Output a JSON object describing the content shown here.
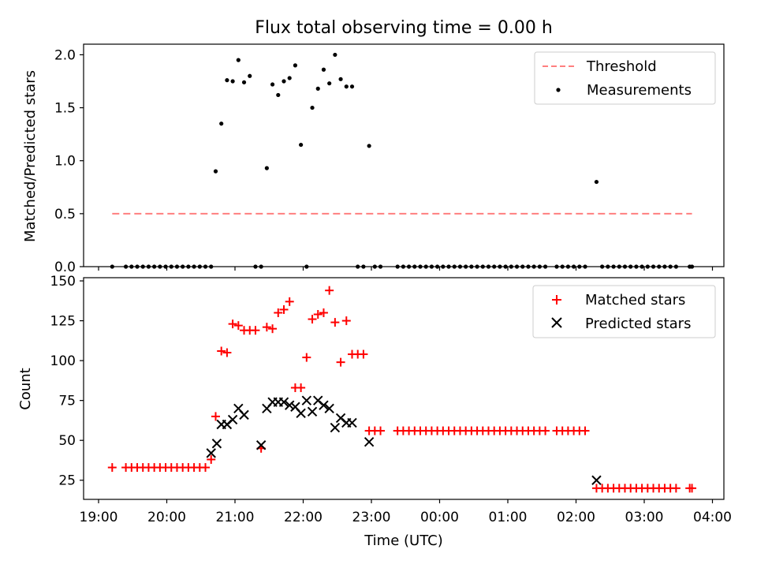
{
  "chart_data": [
    {
      "type": "scatter",
      "title": "Flux total observing time = 0.00 h",
      "ylabel": "Matched/Predicted stars",
      "xlabel": "",
      "ylim": [
        0,
        2.1
      ],
      "yticks": [
        "0.0",
        "0.5",
        "1.0",
        "1.5",
        "2.0"
      ],
      "yticks_values": [
        0,
        0.5,
        1.0,
        1.5,
        2.0
      ],
      "legend_position": "top-right",
      "series": [
        {
          "name": "Threshold",
          "kind": "line",
          "style": "dashed",
          "color": "#ff7f7f",
          "x": [
            "19:12",
            "23:59",
            "03:42"
          ],
          "y": [
            0.5,
            0.5,
            0.5
          ]
        },
        {
          "name": "Measurements",
          "kind": "dots",
          "color": "#000000",
          "x": [
            "19:12",
            "19:24",
            "19:29",
            "19:34",
            "19:39",
            "19:44",
            "19:49",
            "19:54",
            "19:59",
            "20:04",
            "20:09",
            "20:14",
            "20:19",
            "20:24",
            "20:29",
            "20:34",
            "20:39",
            "20:43",
            "20:48",
            "20:53",
            "20:58",
            "21:03",
            "21:08",
            "21:13",
            "21:18",
            "21:23",
            "21:28",
            "21:33",
            "21:38",
            "21:43",
            "21:48",
            "21:53",
            "21:58",
            "22:03",
            "22:08",
            "22:13",
            "22:18",
            "22:23",
            "22:28",
            "22:33",
            "22:38",
            "22:43",
            "22:48",
            "22:53",
            "22:58",
            "23:03",
            "23:08",
            "23:23",
            "23:28",
            "23:33",
            "23:38",
            "23:43",
            "23:48",
            "23:53",
            "23:58",
            "00:03",
            "00:08",
            "00:13",
            "00:18",
            "00:23",
            "00:28",
            "00:33",
            "00:38",
            "00:43",
            "00:48",
            "00:53",
            "00:58",
            "01:03",
            "01:08",
            "01:13",
            "01:18",
            "01:23",
            "01:28",
            "01:33",
            "01:43",
            "01:48",
            "01:53",
            "01:58",
            "02:03",
            "02:08",
            "02:18",
            "02:23",
            "02:28",
            "02:33",
            "02:38",
            "02:43",
            "02:48",
            "02:53",
            "02:58",
            "03:03",
            "03:08",
            "03:13",
            "03:18",
            "03:23",
            "03:28",
            "03:40",
            "03:42"
          ],
          "y": [
            0,
            0,
            0,
            0,
            0,
            0,
            0,
            0,
            0,
            0,
            0,
            0,
            0,
            0,
            0,
            0,
            0,
            0.9,
            1.35,
            1.76,
            1.75,
            1.95,
            1.74,
            1.8,
            0,
            0,
            0.93,
            1.72,
            1.62,
            1.75,
            1.78,
            1.9,
            1.15,
            0,
            1.5,
            1.68,
            1.86,
            1.73,
            2.0,
            1.77,
            1.7,
            1.7,
            0,
            0,
            1.14,
            0,
            0,
            0,
            0,
            0,
            0,
            0,
            0,
            0,
            0,
            0,
            0,
            0,
            0,
            0,
            0,
            0,
            0,
            0,
            0,
            0,
            0,
            0,
            0,
            0,
            0,
            0,
            0,
            0,
            0,
            0,
            0,
            0,
            0,
            0,
            0.8,
            0,
            0,
            0,
            0,
            0,
            0,
            0,
            0,
            0,
            0,
            0,
            0,
            0,
            0,
            0,
            0
          ]
        }
      ]
    },
    {
      "type": "scatter",
      "title": "",
      "ylabel": "Count",
      "xlabel": "Time (UTC)",
      "ylim": [
        13,
        152
      ],
      "yticks": [
        "25",
        "50",
        "75",
        "100",
        "125",
        "150"
      ],
      "yticks_values": [
        25,
        50,
        75,
        100,
        125,
        150
      ],
      "xticks": [
        "19:00",
        "20:00",
        "21:00",
        "22:00",
        "23:00",
        "00:00",
        "01:00",
        "02:00",
        "03:00",
        "04:00"
      ],
      "legend_position": "top-right",
      "series": [
        {
          "name": "Matched stars",
          "kind": "plus",
          "color": "#ff0000",
          "x": [
            "19:12",
            "19:24",
            "19:29",
            "19:34",
            "19:39",
            "19:44",
            "19:49",
            "19:54",
            "19:59",
            "20:04",
            "20:09",
            "20:14",
            "20:19",
            "20:24",
            "20:29",
            "20:34",
            "20:39",
            "20:43",
            "20:48",
            "20:53",
            "20:58",
            "21:03",
            "21:08",
            "21:13",
            "21:18",
            "21:23",
            "21:28",
            "21:33",
            "21:38",
            "21:43",
            "21:48",
            "21:53",
            "21:58",
            "22:03",
            "22:08",
            "22:13",
            "22:18",
            "22:23",
            "22:28",
            "22:33",
            "22:38",
            "22:43",
            "22:48",
            "22:53",
            "22:58",
            "23:03",
            "23:08",
            "23:23",
            "23:28",
            "23:33",
            "23:38",
            "23:43",
            "23:48",
            "23:53",
            "23:58",
            "00:03",
            "00:08",
            "00:13",
            "00:18",
            "00:23",
            "00:28",
            "00:33",
            "00:38",
            "00:43",
            "00:48",
            "00:53",
            "00:58",
            "01:03",
            "01:08",
            "01:13",
            "01:18",
            "01:23",
            "01:28",
            "01:33",
            "01:43",
            "01:48",
            "01:53",
            "01:58",
            "02:03",
            "02:08",
            "02:18",
            "02:23",
            "02:28",
            "02:33",
            "02:38",
            "02:43",
            "02:48",
            "02:53",
            "02:58",
            "03:03",
            "03:08",
            "03:13",
            "03:18",
            "03:23",
            "03:28",
            "03:40",
            "03:42"
          ],
          "y": [
            33,
            33,
            33,
            33,
            33,
            33,
            33,
            33,
            33,
            33,
            33,
            33,
            33,
            33,
            33,
            33,
            38,
            65,
            106,
            105,
            123,
            122,
            119,
            119,
            119,
            45,
            121,
            120,
            130,
            132,
            137,
            83,
            83,
            102,
            126,
            129,
            130,
            144,
            124,
            99,
            125,
            104,
            104,
            104,
            56,
            56,
            56,
            56,
            56,
            56,
            56,
            56,
            56,
            56,
            56,
            56,
            56,
            56,
            56,
            56,
            56,
            56,
            56,
            56,
            56,
            56,
            56,
            56,
            56,
            56,
            56,
            56,
            56,
            56,
            56,
            56,
            56,
            56,
            56,
            56,
            20,
            20,
            20,
            20,
            20,
            20,
            20,
            20,
            20,
            20,
            20,
            20,
            20,
            20,
            20,
            20,
            20
          ]
        },
        {
          "name": "Predicted stars",
          "kind": "x",
          "color": "#000000",
          "x": [
            "20:39",
            "20:44",
            "20:48",
            "20:53",
            "20:58",
            "21:03",
            "21:08",
            "21:23",
            "21:28",
            "21:33",
            "21:38",
            "21:43",
            "21:48",
            "21:53",
            "21:58",
            "22:03",
            "22:08",
            "22:13",
            "22:18",
            "22:23",
            "22:28",
            "22:33",
            "22:38",
            "22:43",
            "22:58",
            "02:18"
          ],
          "y": [
            42,
            48,
            60,
            60,
            63,
            70,
            66,
            47,
            70,
            74,
            74,
            74,
            72,
            71,
            67,
            75,
            68,
            75,
            72,
            70,
            58,
            64,
            61,
            61,
            49,
            25
          ]
        }
      ]
    }
  ]
}
